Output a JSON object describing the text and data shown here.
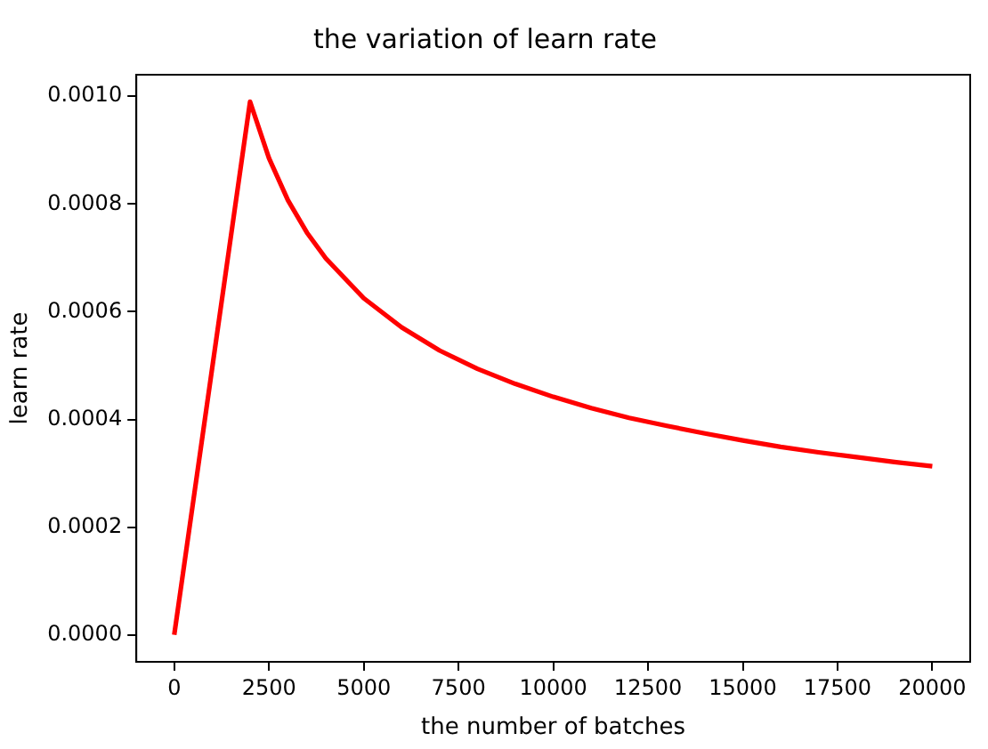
{
  "chart_data": {
    "type": "line",
    "title": "the variation of learn rate",
    "xlabel": "the number of batches",
    "ylabel": "learn rate",
    "xlim": [
      -1000,
      21000
    ],
    "xticks": [
      0,
      2500,
      5000,
      7500,
      10000,
      12500,
      15000,
      17500,
      20000
    ],
    "ylim": [
      -5e-05,
      0.00104
    ],
    "yticks": [
      {
        "value": 0,
        "label": "0.0000"
      },
      {
        "value": 0.0002,
        "label": "0.0002"
      },
      {
        "value": 0.0004,
        "label": "0.0004"
      },
      {
        "value": 0.0006,
        "label": "0.0006"
      },
      {
        "value": 0.0008,
        "label": "0.0008"
      },
      {
        "value": 0.001,
        "label": "0.0010"
      }
    ],
    "grid": false,
    "legend": false,
    "marker": "none",
    "line_style": "solid",
    "series": [
      {
        "color": "#ff0000",
        "x": [
          0,
          2000,
          2500,
          3000,
          3500,
          4000,
          5000,
          6000,
          7000,
          8000,
          9000,
          10000,
          11000,
          12000,
          13000,
          14000,
          15000,
          16000,
          17000,
          18000,
          19000,
          20000
        ],
        "values": [
          0,
          0.00099,
          0.000885,
          0.000807,
          0.000747,
          0.000699,
          0.000625,
          0.000571,
          0.000528,
          0.000494,
          0.000466,
          0.000442,
          0.000421,
          0.000403,
          0.000388,
          0.000374,
          0.000361,
          0.000349,
          0.000339,
          0.00033,
          0.000321,
          0.000313
        ]
      }
    ]
  }
}
